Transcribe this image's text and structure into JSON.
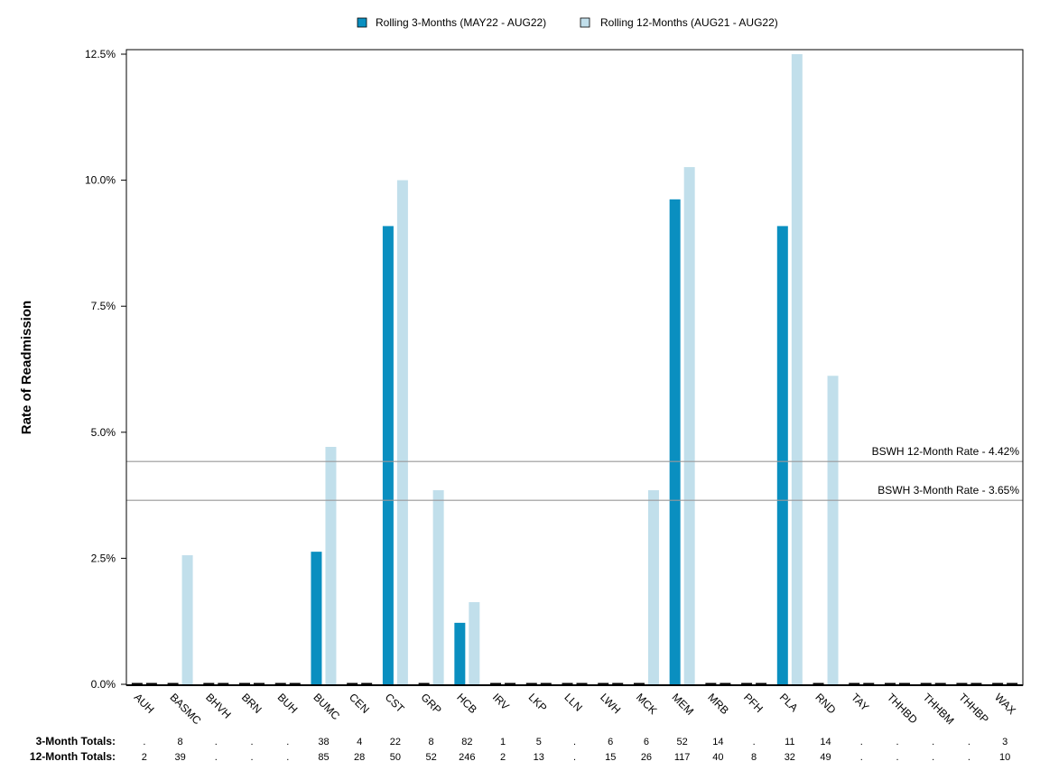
{
  "chart_data": {
    "type": "bar",
    "ylabel": "Rate of Readmission",
    "ylim": [
      0,
      12.5
    ],
    "yticks": [
      "0.0%",
      "2.5%",
      "5.0%",
      "7.5%",
      "10.0%",
      "12.5%"
    ],
    "ytick_values": [
      0,
      2.5,
      5.0,
      7.5,
      10.0,
      12.5
    ],
    "grid": false,
    "legend_position": "top-center",
    "categories": [
      "AUH",
      "BASMC",
      "BHVH",
      "BRN",
      "BUH",
      "BUMC",
      "CEN",
      "CST",
      "GRP",
      "HCB",
      "IRV",
      "LKP",
      "LLN",
      "LWH",
      "MCK",
      "MEM",
      "MRB",
      "PFH",
      "PLA",
      "RND",
      "TAY",
      "THHBD",
      "THHBM",
      "THHBP",
      "WAX"
    ],
    "series": [
      {
        "name": "Rolling 3-Months (MAY22 - AUG22)",
        "color": "#0a8fc0",
        "values": [
          0,
          0,
          0,
          0,
          0,
          2.63,
          0,
          9.09,
          0,
          1.22,
          0,
          0,
          0,
          0,
          0,
          9.62,
          0,
          0,
          9.09,
          0,
          0,
          0,
          0,
          0,
          0
        ]
      },
      {
        "name": "Rolling 12-Months (AUG21 - AUG22)",
        "color": "#c1dfeb",
        "values": [
          0,
          2.56,
          0,
          0,
          0,
          4.71,
          0,
          10.0,
          3.85,
          1.63,
          0,
          0,
          0,
          0,
          3.85,
          10.26,
          0,
          0,
          12.5,
          6.12,
          0,
          0,
          0,
          0,
          0
        ]
      }
    ],
    "reference_lines": [
      {
        "label": "BSWH 12-Month Rate - 4.42%",
        "value": 4.42,
        "color": "#999999"
      },
      {
        "label": "BSWH  3-Month Rate - 3.65%",
        "value": 3.65,
        "color": "#999999"
      }
    ],
    "totals": [
      {
        "label": "3-Month Totals:",
        "values": [
          ".",
          "8",
          ".",
          ".",
          ".",
          "38",
          "4",
          "22",
          "8",
          "82",
          "1",
          "5",
          ".",
          "6",
          "6",
          "52",
          "14",
          ".",
          "11",
          "14",
          ".",
          ".",
          ".",
          ".",
          "3"
        ]
      },
      {
        "label": "12-Month Totals:",
        "values": [
          "2",
          "39",
          ".",
          ".",
          ".",
          "85",
          "28",
          "50",
          "52",
          "246",
          "2",
          "13",
          ".",
          "15",
          "26",
          "117",
          "40",
          "8",
          "32",
          "49",
          ".",
          ".",
          ".",
          ".",
          "10"
        ]
      }
    ]
  }
}
